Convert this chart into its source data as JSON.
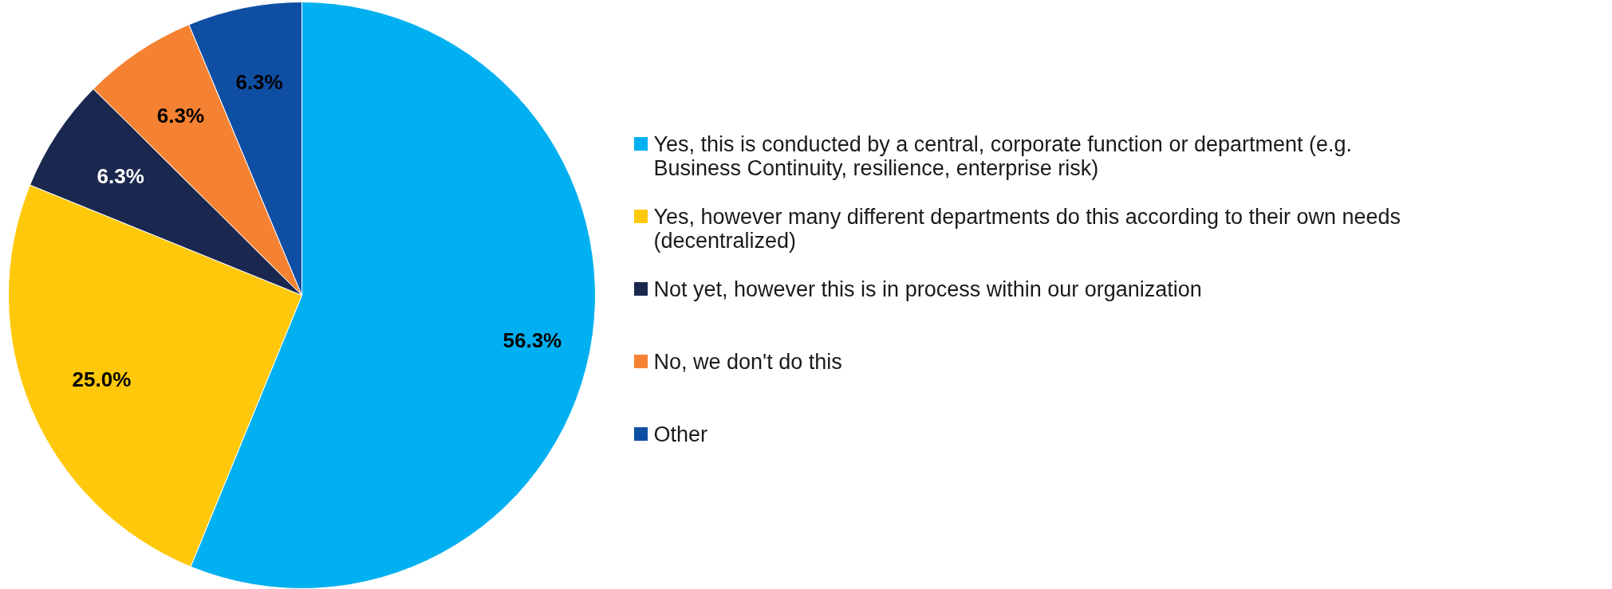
{
  "chart_data": {
    "type": "pie",
    "categories": [
      "Yes, this is conducted by a central, corporate function or department (e.g. Business Continuity, resilience, enterprise risk)",
      "Yes, however many different departments do this according to their own needs (decentralized)",
      "Not yet, however this is in process within our organization",
      "No, we don't do this",
      "Other"
    ],
    "values": [
      56.3,
      25.0,
      6.3,
      6.3,
      6.3
    ],
    "colors": [
      "#00b0f0",
      "#ffc80a",
      "#1a2850",
      "#f58232",
      "#0e4fa3"
    ],
    "value_labels": [
      "56.3%",
      "25.0%",
      "6.3%",
      "6.3%",
      "6.3%"
    ],
    "legend": "right"
  }
}
